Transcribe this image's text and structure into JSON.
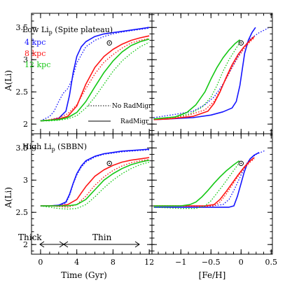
{
  "colors": {
    "4 kpc": "#1414ff",
    "8 kpc": "#ff1414",
    "12 kpc": "#14c814",
    "axes": "#000000"
  },
  "labels": {
    "ylabel": "A(Li)",
    "xlabel_left": "Time (Gyr)",
    "xlabel_right": "[Fe/H]",
    "top_title_main": "Low Li",
    "top_title_sub": "p",
    "top_title_rest": " (Spite plateau)",
    "bottom_title_main": "High Li",
    "bottom_title_sub": "p",
    "bottom_title_rest": " (SBBN)",
    "legend_style_dotted": "No RadMigr",
    "legend_style_solid": "RadMigr",
    "thick": "Thick",
    "thin": "Thin"
  },
  "chart_data": [
    {
      "panel": "top-left",
      "type": "line",
      "title": "Low Li_p (Spite plateau)",
      "xlabel": "",
      "ylabel": "A(Li)",
      "xlim": [
        -1,
        12.3
      ],
      "ylim": [
        1.85,
        3.72
      ],
      "x_ticks": [
        0,
        4,
        8,
        12
      ],
      "y_ticks": [
        2,
        2.5,
        3,
        3.5
      ],
      "legend": [
        "4 kpc",
        "8 kpc",
        "12 kpc"
      ],
      "observation": {
        "x": 7.6,
        "y": 3.26
      },
      "series": [
        {
          "name": "4 kpc",
          "style": "solid",
          "x": [
            0,
            1,
            2,
            2.8,
            3.2,
            3.6,
            4,
            4.5,
            5,
            6,
            7,
            8,
            9,
            10,
            11,
            12
          ],
          "y": [
            2.05,
            2.06,
            2.09,
            2.2,
            2.45,
            2.8,
            3.05,
            3.2,
            3.28,
            3.36,
            3.4,
            3.42,
            3.44,
            3.46,
            3.48,
            3.5
          ]
        },
        {
          "name": "4 kpc",
          "style": "dotted",
          "x": [
            0,
            1,
            1.5,
            2,
            2.5,
            3,
            3.5,
            4,
            5,
            6,
            7,
            8,
            9,
            10,
            11,
            12
          ],
          "y": [
            2.05,
            2.12,
            2.2,
            2.35,
            2.48,
            2.55,
            2.7,
            2.95,
            3.2,
            3.3,
            3.36,
            3.4,
            3.43,
            3.45,
            3.47,
            3.49
          ]
        },
        {
          "name": "8 kpc",
          "style": "solid",
          "x": [
            0,
            1,
            2,
            3,
            4,
            4.5,
            5,
            6,
            7,
            8,
            9,
            10,
            11,
            12
          ],
          "y": [
            2.05,
            2.06,
            2.08,
            2.12,
            2.28,
            2.45,
            2.62,
            2.88,
            3.05,
            3.16,
            3.24,
            3.3,
            3.34,
            3.37
          ]
        },
        {
          "name": "8 kpc",
          "style": "dotted",
          "x": [
            0,
            1,
            2,
            3,
            4,
            5,
            6,
            7,
            8,
            9,
            10,
            11,
            12
          ],
          "y": [
            2.05,
            2.07,
            2.1,
            2.16,
            2.3,
            2.55,
            2.78,
            2.96,
            3.08,
            3.18,
            3.26,
            3.3,
            3.33
          ]
        },
        {
          "name": "12 kpc",
          "style": "solid",
          "x": [
            0,
            1,
            2,
            3,
            4,
            5,
            6,
            7,
            8,
            9,
            10,
            11,
            12
          ],
          "y": [
            2.05,
            2.06,
            2.07,
            2.1,
            2.18,
            2.35,
            2.58,
            2.8,
            2.98,
            3.12,
            3.22,
            3.28,
            3.32
          ]
        },
        {
          "name": "12 kpc",
          "style": "dotted",
          "x": [
            0,
            1,
            2,
            3,
            4,
            5,
            6,
            7,
            8,
            9,
            10,
            11,
            12
          ],
          "y": [
            2.05,
            2.05,
            2.06,
            2.08,
            2.13,
            2.25,
            2.42,
            2.62,
            2.82,
            2.98,
            3.1,
            3.2,
            3.27
          ]
        }
      ]
    },
    {
      "panel": "top-right",
      "type": "line",
      "xlabel": "",
      "ylabel": "",
      "xlim": [
        -1.48,
        0.52
      ],
      "ylim": [
        1.85,
        3.72
      ],
      "x_ticks": [
        -1,
        -0.5,
        0,
        0.5
      ],
      "y_ticks": [
        2,
        2.5,
        3,
        3.5
      ],
      "observation": {
        "x": 0.0,
        "y": 3.26
      },
      "series": [
        {
          "name": "4 kpc",
          "style": "solid",
          "x": [
            -1.45,
            -1.2,
            -0.8,
            -0.5,
            -0.3,
            -0.15,
            -0.08,
            -0.02,
            0.02,
            0.06,
            0.12,
            0.18,
            0.24
          ],
          "y": [
            2.07,
            2.08,
            2.1,
            2.14,
            2.19,
            2.25,
            2.35,
            2.6,
            2.85,
            3.1,
            3.3,
            3.42,
            3.5
          ]
        },
        {
          "name": "4 kpc",
          "style": "dotted",
          "x": [
            -1.45,
            -1.1,
            -0.8,
            -0.6,
            -0.45,
            -0.35,
            -0.25,
            -0.15,
            -0.05,
            0.05,
            0.15,
            0.3,
            0.45
          ],
          "y": [
            2.1,
            2.15,
            2.2,
            2.3,
            2.42,
            2.55,
            2.7,
            2.88,
            3.05,
            3.2,
            3.32,
            3.42,
            3.49
          ]
        },
        {
          "name": "8 kpc",
          "style": "solid",
          "x": [
            -1.45,
            -1.2,
            -0.8,
            -0.55,
            -0.45,
            -0.35,
            -0.25,
            -0.15,
            -0.05,
            0.05,
            0.15,
            0.22
          ],
          "y": [
            2.07,
            2.08,
            2.12,
            2.2,
            2.32,
            2.5,
            2.72,
            2.92,
            3.08,
            3.2,
            3.3,
            3.36
          ]
        },
        {
          "name": "8 kpc",
          "style": "dotted",
          "x": [
            -1.45,
            -1.2,
            -0.9,
            -0.6,
            -0.45,
            -0.35,
            -0.25,
            -0.15,
            -0.05,
            0.05,
            0.15,
            0.22
          ],
          "y": [
            2.07,
            2.09,
            2.13,
            2.22,
            2.35,
            2.52,
            2.7,
            2.88,
            3.04,
            3.17,
            3.28,
            3.34
          ]
        },
        {
          "name": "12 kpc",
          "style": "solid",
          "x": [
            -1.45,
            -1.1,
            -0.9,
            -0.75,
            -0.6,
            -0.5,
            -0.4,
            -0.3,
            -0.2,
            -0.1,
            -0.02
          ],
          "y": [
            2.08,
            2.11,
            2.18,
            2.3,
            2.5,
            2.7,
            2.88,
            3.03,
            3.15,
            3.25,
            3.31
          ]
        },
        {
          "name": "12 kpc",
          "style": "dotted",
          "x": [
            -1.45,
            -1.1,
            -0.85,
            -0.65,
            -0.5,
            -0.4,
            -0.3,
            -0.2,
            -0.1,
            -0.02
          ],
          "y": [
            2.08,
            2.11,
            2.16,
            2.26,
            2.42,
            2.6,
            2.82,
            3.0,
            3.15,
            3.27
          ]
        }
      ]
    },
    {
      "panel": "bottom-left",
      "type": "line",
      "title": "High Li_p (SBBN)",
      "xlabel": "Time (Gyr)",
      "ylabel": "A(Li)",
      "xlim": [
        -1,
        12.3
      ],
      "ylim": [
        1.85,
        3.72
      ],
      "x_ticks": [
        0,
        4,
        8,
        12
      ],
      "y_ticks": [
        2,
        2.5,
        3,
        3.5
      ],
      "observation": {
        "x": 7.6,
        "y": 3.26
      },
      "annotations": [
        {
          "text": "Thick",
          "x_from": 0,
          "x_to": 3.3
        },
        {
          "text": "Thin",
          "x_from": 3.3,
          "x_to": 12
        }
      ],
      "series": [
        {
          "name": "4 kpc",
          "style": "solid",
          "x": [
            0,
            1,
            2,
            2.8,
            3.2,
            3.6,
            4,
            4.5,
            5,
            6,
            7,
            8,
            9,
            10,
            11,
            12
          ],
          "y": [
            2.6,
            2.6,
            2.61,
            2.66,
            2.78,
            2.95,
            3.1,
            3.22,
            3.3,
            3.37,
            3.41,
            3.43,
            3.45,
            3.46,
            3.47,
            3.48
          ]
        },
        {
          "name": "4 kpc",
          "style": "dotted",
          "x": [
            0,
            1,
            2,
            2.8,
            3.2,
            3.6,
            4,
            4.5,
            5,
            6,
            7,
            8,
            9,
            10,
            11,
            12
          ],
          "y": [
            2.6,
            2.6,
            2.61,
            2.64,
            2.76,
            2.94,
            3.08,
            3.2,
            3.28,
            3.36,
            3.4,
            3.42,
            3.44,
            3.45,
            3.46,
            3.47
          ]
        },
        {
          "name": "8 kpc",
          "style": "solid",
          "x": [
            0,
            1,
            2,
            3,
            4,
            4.5,
            5,
            6,
            7,
            8,
            9,
            10,
            11,
            12
          ],
          "y": [
            2.6,
            2.6,
            2.6,
            2.62,
            2.7,
            2.8,
            2.9,
            3.06,
            3.16,
            3.23,
            3.28,
            3.31,
            3.33,
            3.35
          ]
        },
        {
          "name": "8 kpc",
          "style": "dotted",
          "x": [
            0,
            1,
            2,
            3,
            4,
            5,
            6,
            7,
            8,
            9,
            10,
            11,
            12
          ],
          "y": [
            2.6,
            2.6,
            2.59,
            2.58,
            2.62,
            2.75,
            2.92,
            3.05,
            3.15,
            3.22,
            3.27,
            3.3,
            3.32
          ]
        },
        {
          "name": "12 kpc",
          "style": "solid",
          "x": [
            0,
            1,
            2,
            3,
            4,
            5,
            6,
            7,
            8,
            9,
            10,
            11,
            12
          ],
          "y": [
            2.6,
            2.6,
            2.6,
            2.6,
            2.62,
            2.7,
            2.85,
            3.0,
            3.1,
            3.18,
            3.24,
            3.28,
            3.31
          ]
        },
        {
          "name": "12 kpc",
          "style": "dotted",
          "x": [
            0,
            1,
            2,
            3,
            4,
            5,
            6,
            7,
            8,
            9,
            10,
            11,
            12
          ],
          "y": [
            2.6,
            2.58,
            2.56,
            2.55,
            2.56,
            2.62,
            2.74,
            2.88,
            3.0,
            3.1,
            3.18,
            3.24,
            3.28
          ]
        }
      ]
    },
    {
      "panel": "bottom-right",
      "type": "line",
      "xlabel": "[Fe/H]",
      "ylabel": "",
      "xlim": [
        -1.48,
        0.52
      ],
      "ylim": [
        1.85,
        3.72
      ],
      "x_ticks": [
        -1,
        -0.5,
        0,
        0.5
      ],
      "y_ticks": [
        2,
        2.5,
        3,
        3.5
      ],
      "observation": {
        "x": 0.0,
        "y": 3.26
      },
      "series": [
        {
          "name": "4 kpc",
          "style": "solid",
          "x": [
            -1.45,
            -1.0,
            -0.5,
            -0.2,
            -0.12,
            -0.06,
            0.0,
            0.05,
            0.1,
            0.15,
            0.22,
            0.3
          ],
          "y": [
            2.58,
            2.58,
            2.58,
            2.58,
            2.6,
            2.75,
            2.95,
            3.12,
            3.25,
            3.33,
            3.39,
            3.43
          ]
        },
        {
          "name": "4 kpc",
          "style": "dotted",
          "x": [
            -1.45,
            -1.0,
            -0.5,
            -0.3,
            -0.2,
            -0.12,
            -0.05,
            0.02,
            0.08,
            0.15,
            0.25,
            0.4
          ],
          "y": [
            2.6,
            2.6,
            2.6,
            2.62,
            2.7,
            2.84,
            2.98,
            3.12,
            3.24,
            3.33,
            3.4,
            3.46
          ]
        },
        {
          "name": "8 kpc",
          "style": "solid",
          "x": [
            -1.45,
            -1.0,
            -0.6,
            -0.45,
            -0.35,
            -0.25,
            -0.15,
            -0.05,
            0.05,
            0.15,
            0.22
          ],
          "y": [
            2.6,
            2.6,
            2.6,
            2.62,
            2.7,
            2.82,
            2.95,
            3.08,
            3.2,
            3.3,
            3.35
          ]
        },
        {
          "name": "8 kpc",
          "style": "dotted",
          "x": [
            -1.45,
            -1.0,
            -0.6,
            -0.45,
            -0.35,
            -0.25,
            -0.15,
            -0.05,
            0.05,
            0.15,
            0.22
          ],
          "y": [
            2.6,
            2.6,
            2.59,
            2.6,
            2.66,
            2.78,
            2.92,
            3.06,
            3.18,
            3.28,
            3.33
          ]
        },
        {
          "name": "12 kpc",
          "style": "solid",
          "x": [
            -1.45,
            -1.0,
            -0.85,
            -0.75,
            -0.65,
            -0.55,
            -0.45,
            -0.35,
            -0.25,
            -0.12,
            -0.03
          ],
          "y": [
            2.6,
            2.6,
            2.62,
            2.66,
            2.74,
            2.84,
            2.95,
            3.05,
            3.14,
            3.24,
            3.3
          ]
        },
        {
          "name": "12 kpc",
          "style": "dotted",
          "x": [
            -1.45,
            -1.0,
            -0.75,
            -0.6,
            -0.5,
            -0.4,
            -0.3,
            -0.2,
            -0.1,
            -0.03
          ],
          "y": [
            2.58,
            2.56,
            2.56,
            2.6,
            2.68,
            2.8,
            2.92,
            3.05,
            3.18,
            3.27
          ]
        }
      ]
    }
  ]
}
